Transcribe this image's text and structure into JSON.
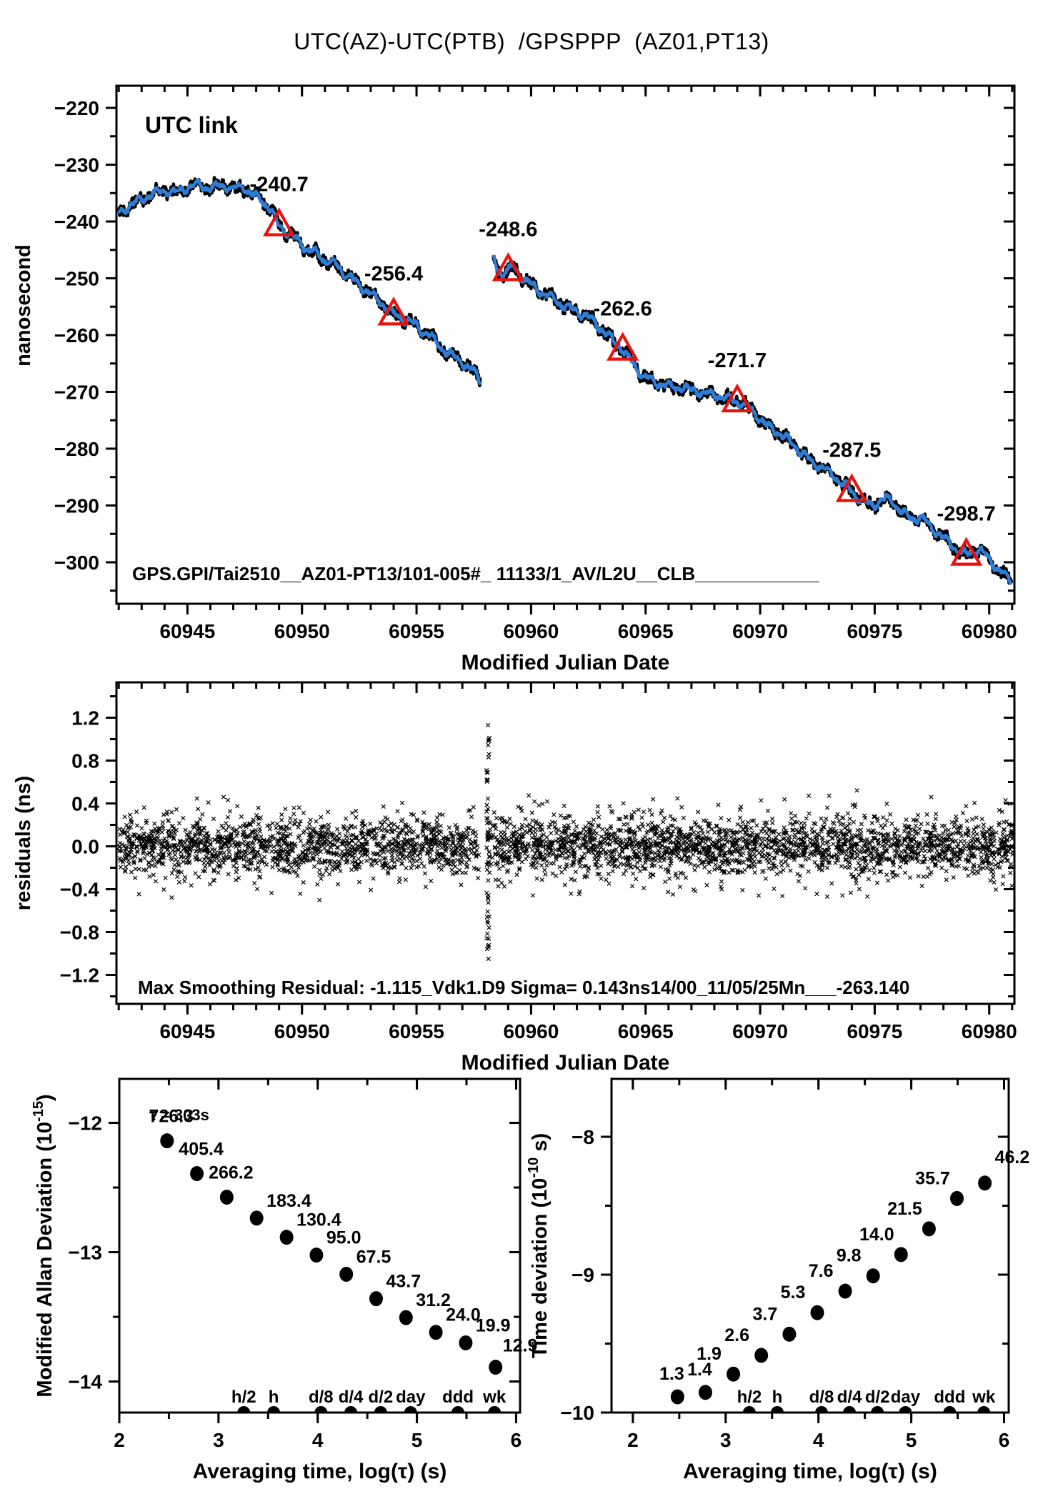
{
  "title": "UTC(AZ)-UTC(PTB)  /GPSPPP  (AZ01,PT13)",
  "colors": {
    "trace_blue": "#2d7dd6",
    "noise_black": "#000000",
    "accent_red": "#e8120e",
    "utc_link_green": "#6f8f25",
    "axis_black": "#000000",
    "background": "#ffffff"
  },
  "chart_data": [
    {
      "id": "utc_offset",
      "type": "line",
      "corner_label": "UTC link",
      "xlabel": "Modified Julian Date",
      "ylabel": "nanosecond",
      "xlim": [
        60941.9,
        60981.1
      ],
      "ylim": [
        -307.3,
        -216.1
      ],
      "xticks": [
        60945,
        60950,
        60955,
        60960,
        60965,
        60970,
        60975,
        60980
      ],
      "xtick_minor_step": 1,
      "yticks": [
        -300,
        -290,
        -280,
        -270,
        -260,
        -250,
        -240,
        -230,
        -220
      ],
      "ytick_minor_step": 5,
      "grid": false,
      "legend": "none",
      "footer_annotation": "GPS.GPI/Tai2510__AZ01-PT13/101-005#_  11133/1_AV/L2U__CLB____________",
      "daily_markers": [
        {
          "mjd": 60949,
          "ns": -240.7,
          "label": "-240.7"
        },
        {
          "mjd": 60954,
          "ns": -256.4,
          "label": "-256.4"
        },
        {
          "mjd": 60959,
          "ns": -248.6,
          "label": "-248.6"
        },
        {
          "mjd": 60964,
          "ns": -262.6,
          "label": "-262.6"
        },
        {
          "mjd": 60969,
          "ns": -271.7,
          "label": "-271.7"
        },
        {
          "mjd": 60974,
          "ns": -287.5,
          "label": "-287.5"
        },
        {
          "mjd": 60979,
          "ns": -298.7,
          "label": "-298.7"
        }
      ],
      "segments": [
        [
          [
            60942.0,
            -238.7
          ],
          [
            60942.5,
            -237.0
          ],
          [
            60943.0,
            -236.2
          ],
          [
            60943.5,
            -235.0
          ],
          [
            60944.0,
            -234.6
          ],
          [
            60944.5,
            -234.9
          ],
          [
            60945.0,
            -234.0
          ],
          [
            60945.5,
            -233.6
          ],
          [
            60946.0,
            -234.2
          ],
          [
            60946.5,
            -233.5
          ],
          [
            60947.0,
            -234.3
          ],
          [
            60947.4,
            -233.9
          ],
          [
            60947.8,
            -235.2
          ],
          [
            60948.2,
            -236.0
          ],
          [
            60948.6,
            -237.8
          ],
          [
            60949.0,
            -240.7
          ],
          [
            60949.4,
            -242.1
          ],
          [
            60949.8,
            -243.2
          ],
          [
            60950.2,
            -244.9
          ],
          [
            60950.6,
            -245.5
          ],
          [
            60951.0,
            -246.9
          ],
          [
            60951.4,
            -247.4
          ],
          [
            60951.8,
            -248.9
          ],
          [
            60952.2,
            -250.1
          ],
          [
            60952.6,
            -251.6
          ],
          [
            60953.0,
            -252.7
          ],
          [
            60953.4,
            -254.1
          ],
          [
            60953.7,
            -255.3
          ],
          [
            60954.0,
            -256.4
          ],
          [
            60954.4,
            -257.1
          ],
          [
            60954.8,
            -257.7
          ],
          [
            60955.2,
            -259.1
          ],
          [
            60955.6,
            -260.1
          ],
          [
            60956.0,
            -261.9
          ],
          [
            60956.4,
            -263.3
          ],
          [
            60956.8,
            -264.1
          ],
          [
            60957.2,
            -265.6
          ],
          [
            60957.5,
            -266.4
          ],
          [
            60957.8,
            -267.9
          ]
        ],
        [
          [
            60958.35,
            -246.4
          ],
          [
            60958.55,
            -248.6
          ],
          [
            60958.75,
            -249.4
          ],
          [
            60958.9,
            -248.5
          ],
          [
            60959.0,
            -248.6
          ],
          [
            60959.2,
            -248.1
          ],
          [
            60959.45,
            -249.0
          ],
          [
            60959.7,
            -250.1
          ],
          [
            60960.0,
            -251.1
          ],
          [
            60960.4,
            -252.3
          ],
          [
            60960.8,
            -253.1
          ],
          [
            60961.2,
            -254.3
          ],
          [
            60961.6,
            -255.1
          ],
          [
            60962.0,
            -255.9
          ],
          [
            60962.4,
            -256.5
          ],
          [
            60962.8,
            -257.9
          ],
          [
            60963.2,
            -259.4
          ],
          [
            60963.6,
            -261.1
          ],
          [
            60964.0,
            -262.6
          ],
          [
            60964.3,
            -264.1
          ],
          [
            60964.6,
            -265.9
          ],
          [
            60965.0,
            -267.4
          ],
          [
            60965.4,
            -268.4
          ],
          [
            60965.8,
            -268.7
          ],
          [
            60966.2,
            -269.3
          ],
          [
            60966.6,
            -269.1
          ],
          [
            60967.0,
            -269.7
          ],
          [
            60967.4,
            -270.0
          ],
          [
            60967.8,
            -270.4
          ],
          [
            60968.2,
            -270.7
          ],
          [
            60968.6,
            -271.2
          ],
          [
            60969.0,
            -271.7
          ],
          [
            60969.4,
            -272.5
          ],
          [
            60969.7,
            -273.4
          ],
          [
            60970.0,
            -274.7
          ],
          [
            60970.3,
            -276.0
          ],
          [
            60970.7,
            -276.9
          ],
          [
            60971.0,
            -277.7
          ],
          [
            60971.4,
            -279.1
          ],
          [
            60971.8,
            -280.7
          ],
          [
            60972.2,
            -282.1
          ],
          [
            60972.6,
            -283.1
          ],
          [
            60973.0,
            -284.1
          ],
          [
            60973.4,
            -285.4
          ],
          [
            60973.7,
            -286.5
          ],
          [
            60974.0,
            -287.5
          ],
          [
            60974.3,
            -288.7
          ],
          [
            60974.6,
            -289.6
          ],
          [
            60974.9,
            -290.0
          ],
          [
            60975.2,
            -289.3
          ],
          [
            60975.5,
            -288.7
          ],
          [
            60975.8,
            -289.4
          ],
          [
            60976.1,
            -290.7
          ],
          [
            60976.4,
            -291.9
          ],
          [
            60976.7,
            -292.4
          ],
          [
            60977.0,
            -292.0
          ],
          [
            60977.3,
            -293.1
          ],
          [
            60977.6,
            -294.4
          ],
          [
            60977.9,
            -295.3
          ],
          [
            60978.2,
            -296.3
          ],
          [
            60978.5,
            -297.5
          ],
          [
            60978.8,
            -298.3
          ],
          [
            60979.0,
            -298.7
          ],
          [
            60979.3,
            -298.1
          ],
          [
            60979.6,
            -297.7
          ],
          [
            60979.9,
            -299.0
          ],
          [
            60980.2,
            -300.5
          ],
          [
            60980.5,
            -301.6
          ],
          [
            60980.8,
            -302.7
          ],
          [
            60981.0,
            -303.4
          ]
        ]
      ]
    },
    {
      "id": "residuals",
      "type": "scatter",
      "xlabel": "Modified Julian Date",
      "ylabel": "residuals (ns)",
      "xlim": [
        60941.9,
        60981.1
      ],
      "ylim": [
        -1.47,
        1.53
      ],
      "xticks": [
        60945,
        60950,
        60955,
        60960,
        60965,
        60970,
        60975,
        60980
      ],
      "xtick_minor_step": 1,
      "yticks": [
        -1.2,
        -0.8,
        -0.4,
        0.0,
        0.4,
        0.8,
        1.2
      ],
      "ytick_minor_step": 0.2,
      "annotation": "Max Smoothing Residual: -1.115_Vdk1.D9  Sigma= 0.143ns14/00_11/05/25Mn___-263.140",
      "noise_model": {
        "sigma_ns": 0.143,
        "n_points": 3900,
        "band_clip": 0.55,
        "gap_mjd": [
          60957.72,
          60958.05
        ],
        "spike": {
          "mjd": 60958.12,
          "half_width": 0.07,
          "min": -1.05,
          "max": 1.13,
          "n": 46
        }
      }
    },
    {
      "id": "mdev",
      "type": "scatter",
      "xlabel": "Averaging time, log(τ) (s)",
      "ylabel_prefix": "Modified Allan Deviation (10",
      "ylabel_sup": "-15",
      "ylabel_suffix": ")",
      "exponent": -15,
      "tau_note": "τ = 303s",
      "xlim": [
        2.0,
        6.04
      ],
      "ylim": [
        -14.24,
        -11.66
      ],
      "xticks": [
        2,
        3,
        4,
        5,
        6
      ],
      "xtick_minor_step": 0.5,
      "yticks": [
        -14,
        -13,
        -12
      ],
      "ytick_minor_step": 0.5,
      "points": [
        {
          "log_tau": 2.481,
          "value": 726.3,
          "label": "726.3"
        },
        {
          "log_tau": 2.782,
          "value": 405.4,
          "label": "405.4"
        },
        {
          "log_tau": 3.083,
          "value": 266.2,
          "label": "266.2"
        },
        {
          "log_tau": 3.384,
          "value": 183.4,
          "label": "183.4"
        },
        {
          "log_tau": 3.686,
          "value": 130.4,
          "label": "130.4"
        },
        {
          "log_tau": 3.987,
          "value": 95.0,
          "label": "95.0"
        },
        {
          "log_tau": 4.288,
          "value": 67.5,
          "label": "67.5"
        },
        {
          "log_tau": 4.589,
          "value": 43.7,
          "label": "43.7"
        },
        {
          "log_tau": 4.89,
          "value": 31.2,
          "label": "31.2"
        },
        {
          "log_tau": 5.191,
          "value": 24.0,
          "label": "24.0"
        },
        {
          "log_tau": 5.492,
          "value": 19.9,
          "label": "19.9"
        },
        {
          "log_tau": 5.793,
          "value": 12.9,
          "label": "12.9"
        }
      ],
      "tau_markers": [
        {
          "label": "h/2",
          "log_tau": 3.255
        },
        {
          "label": "h",
          "log_tau": 3.556
        },
        {
          "label": "d/8",
          "log_tau": 4.033
        },
        {
          "label": "d/4",
          "log_tau": 4.334
        },
        {
          "label": "d/2",
          "log_tau": 4.635
        },
        {
          "label": "day",
          "log_tau": 4.937
        },
        {
          "label": "ddd",
          "log_tau": 5.414
        },
        {
          "label": "wk",
          "log_tau": 5.782
        }
      ]
    },
    {
      "id": "tdev",
      "type": "scatter",
      "xlabel": "Averaging time, log(τ) (s)",
      "ylabel_prefix": "Time deviation (10",
      "ylabel_sup": "-10",
      "ylabel_suffix": " s)",
      "exponent": -10,
      "xlim": [
        1.77,
        6.05
      ],
      "ylim": [
        -10.0,
        -7.58
      ],
      "xticks": [
        2,
        3,
        4,
        5,
        6
      ],
      "xtick_minor_step": 0.5,
      "yticks": [
        -10,
        -9,
        -8
      ],
      "ytick_minor_step": 0.5,
      "points": [
        {
          "log_tau": 2.481,
          "value": 1.3,
          "label": "1.3"
        },
        {
          "log_tau": 2.782,
          "value": 1.4,
          "label": "1.4"
        },
        {
          "log_tau": 3.083,
          "value": 1.9,
          "label": "1.9"
        },
        {
          "log_tau": 3.384,
          "value": 2.6,
          "label": "2.6"
        },
        {
          "log_tau": 3.686,
          "value": 3.7,
          "label": "3.7"
        },
        {
          "log_tau": 3.987,
          "value": 5.3,
          "label": "5.3"
        },
        {
          "log_tau": 4.288,
          "value": 7.6,
          "label": "7.6"
        },
        {
          "log_tau": 4.589,
          "value": 9.8,
          "label": "9.8"
        },
        {
          "log_tau": 4.89,
          "value": 14.0,
          "label": "14.0"
        },
        {
          "log_tau": 5.191,
          "value": 21.5,
          "label": "21.5"
        },
        {
          "log_tau": 5.492,
          "value": 35.7,
          "label": "35.7"
        },
        {
          "log_tau": 5.793,
          "value": 46.2,
          "label": "46.2"
        }
      ],
      "tau_markers": [
        {
          "label": "h/2",
          "log_tau": 3.255
        },
        {
          "label": "h",
          "log_tau": 3.556
        },
        {
          "label": "d/8",
          "log_tau": 4.033
        },
        {
          "label": "d/4",
          "log_tau": 4.334
        },
        {
          "label": "d/2",
          "log_tau": 4.635
        },
        {
          "label": "day",
          "log_tau": 4.937
        },
        {
          "label": "ddd",
          "log_tau": 5.414
        },
        {
          "label": "wk",
          "log_tau": 5.782
        }
      ]
    }
  ]
}
